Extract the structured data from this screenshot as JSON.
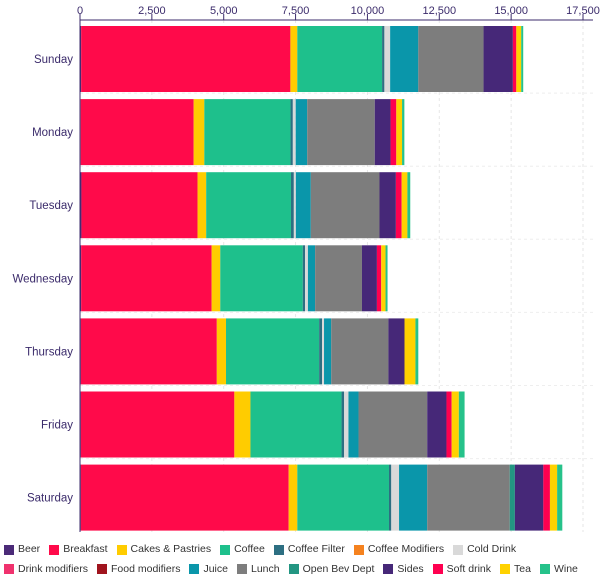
{
  "chart_data": {
    "type": "bar",
    "orientation": "horizontal",
    "stacked": true,
    "categories": [
      "Sunday",
      "Monday",
      "Tuesday",
      "Wednesday",
      "Thursday",
      "Friday",
      "Saturday"
    ],
    "xlim": [
      0,
      17500
    ],
    "x_ticks": [
      "0",
      "2,500",
      "5,000",
      "7,500",
      "10,000",
      "12,500",
      "15,000",
      "17,500"
    ],
    "grid": true,
    "legend_position": "bottom",
    "series": [
      {
        "name": "Beer",
        "color": "#4b2a78",
        "values": [
          40,
          25,
          50,
          40,
          30,
          30,
          30
        ]
      },
      {
        "name": "Breakfast",
        "color": "#ff0a4a",
        "values": [
          7280,
          3930,
          4040,
          4540,
          4730,
          5340,
          7230
        ]
      },
      {
        "name": "Cakes & Pastries",
        "color": "#ffcc00",
        "values": [
          240,
          370,
          300,
          300,
          320,
          560,
          300
        ]
      },
      {
        "name": "Coffee",
        "color": "#1ec08c",
        "values": [
          2950,
          3000,
          2950,
          2870,
          3240,
          3170,
          3190
        ]
      },
      {
        "name": "Coffee Filter",
        "color": "#2d6f82",
        "values": [
          80,
          80,
          100,
          80,
          100,
          90,
          80
        ]
      },
      {
        "name": "Coffee Modifiers",
        "color": "#f5821f",
        "values": [
          0,
          0,
          0,
          0,
          0,
          0,
          0
        ]
      },
      {
        "name": "Cold Drink",
        "color": "#d9d9d9",
        "values": [
          200,
          100,
          70,
          100,
          70,
          150,
          270
        ]
      },
      {
        "name": "Drink modifiers",
        "color": "#f0326e",
        "values": [
          0,
          0,
          0,
          0,
          0,
          0,
          0
        ]
      },
      {
        "name": "Food modifiers",
        "color": "#a0141e",
        "values": [
          0,
          0,
          0,
          0,
          0,
          0,
          0
        ]
      },
      {
        "name": "Juice",
        "color": "#0a96aa",
        "values": [
          980,
          400,
          520,
          250,
          250,
          350,
          980
        ]
      },
      {
        "name": "Lunch",
        "color": "#7d7d7d",
        "values": [
          2270,
          2350,
          2390,
          1630,
          1990,
          2390,
          2870
        ]
      },
      {
        "name": "Open Bev Dept",
        "color": "#239682",
        "values": [
          0,
          0,
          0,
          0,
          0,
          0,
          180
        ]
      },
      {
        "name": "Sides",
        "color": "#462878",
        "values": [
          1020,
          550,
          570,
          520,
          560,
          670,
          990
        ]
      },
      {
        "name": "Soft drink",
        "color": "#ff0050",
        "values": [
          120,
          200,
          200,
          150,
          0,
          180,
          230
        ]
      },
      {
        "name": "Tea",
        "color": "#ffd200",
        "values": [
          170,
          200,
          200,
          150,
          380,
          250,
          250
        ]
      },
      {
        "name": "Wine",
        "color": "#26c28a",
        "values": [
          70,
          80,
          100,
          70,
          100,
          200,
          180
        ]
      }
    ]
  }
}
